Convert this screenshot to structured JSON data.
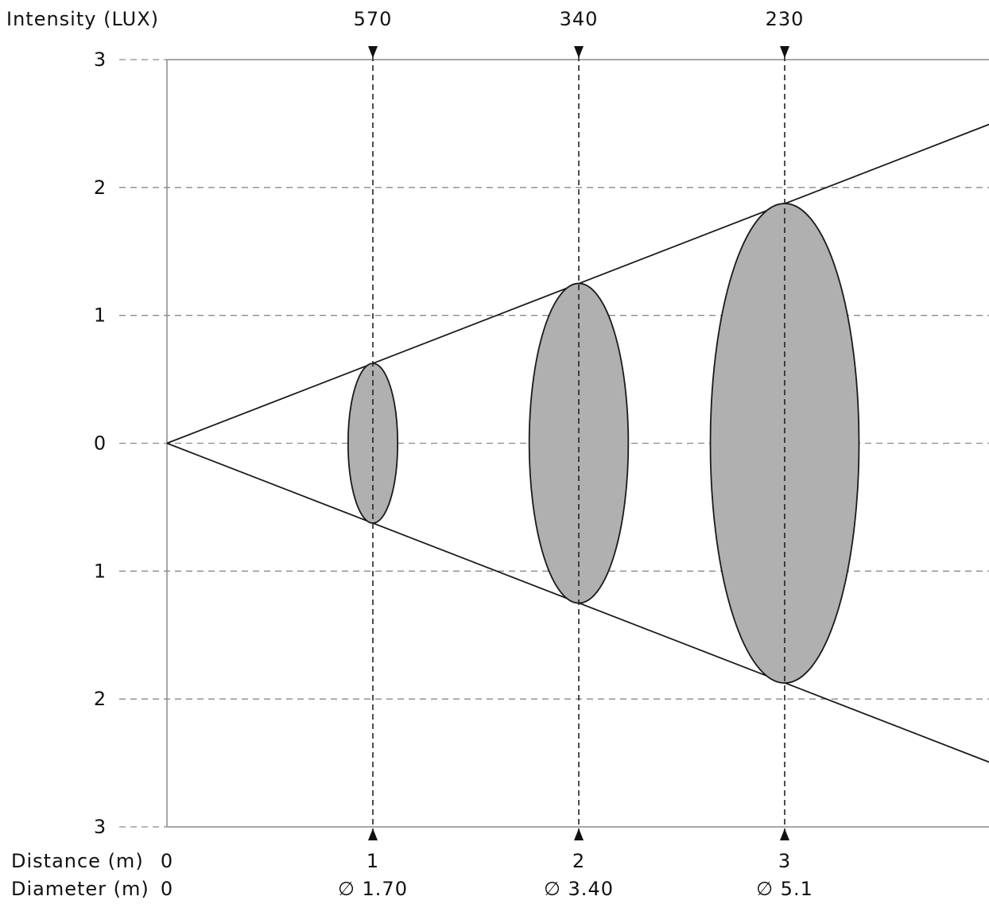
{
  "header": {
    "intensity_label": "Intensity (LUX)"
  },
  "y_axis": {
    "ticks": [
      {
        "label": "3",
        "value": 3
      },
      {
        "label": "2",
        "value": 2
      },
      {
        "label": "1",
        "value": 1
      },
      {
        "label": "0",
        "value": 0
      },
      {
        "label": "1",
        "value": -1
      },
      {
        "label": "2",
        "value": -2
      },
      {
        "label": "3",
        "value": -3
      }
    ],
    "range": [
      -3,
      3
    ],
    "unit": "m"
  },
  "x_axis": {
    "range": [
      0,
      4.8
    ],
    "distance_label": "Distance (m)",
    "diameter_label": "Diameter (m)",
    "origin_distance": "0",
    "origin_diameter": "0"
  },
  "beam": {
    "apex_distance": 0,
    "edge_half_width_at_max": 3,
    "spot_fill_color": "#b0b0b0"
  },
  "markers": [
    {
      "distance": 1,
      "distance_label": "1",
      "lux": "570",
      "diameter": 1.7,
      "diameter_label": "∅ 1.70"
    },
    {
      "distance": 2,
      "distance_label": "2",
      "lux": "340",
      "diameter": 3.4,
      "diameter_label": "∅ 3.40"
    },
    {
      "distance": 3,
      "distance_label": "3",
      "lux": "230",
      "diameter": 5.1,
      "diameter_label": "∅ 5.1"
    }
  ]
}
